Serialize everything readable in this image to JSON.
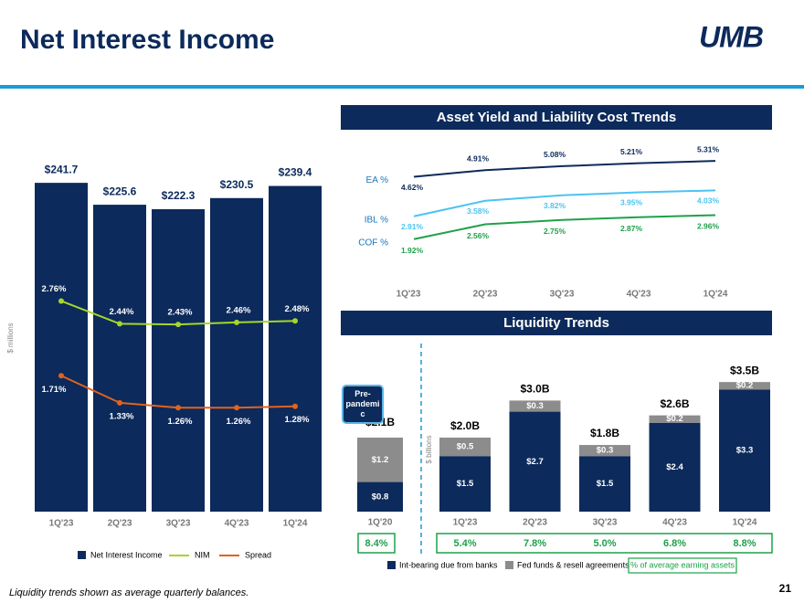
{
  "title": "Net Interest Income",
  "logo": "UMB",
  "footnote": "Liquidity trends shown as average quarterly balances.",
  "page_number": "21",
  "chart_data": [
    {
      "type": "combo",
      "y_label": "$ millions",
      "categories": [
        "1Q'23",
        "2Q'23",
        "3Q'23",
        "4Q'23",
        "1Q'24"
      ],
      "ylim": [
        0,
        272
      ],
      "y2lim": [
        -0.2,
        5.0
      ],
      "series": [
        {
          "name": "Net Interest Income",
          "type": "bar",
          "color": "#0c2a5b",
          "values": [
            241.7,
            225.6,
            222.3,
            230.5,
            239.4
          ],
          "value_labels": [
            "$241.7",
            "$225.6",
            "$222.3",
            "$230.5",
            "$239.4"
          ]
        },
        {
          "name": "NIM",
          "type": "line",
          "axis": "y2",
          "color": "#a6d62a",
          "values": [
            2.76,
            2.44,
            2.43,
            2.46,
            2.48
          ],
          "value_labels": [
            "2.76%",
            "2.44%",
            "2.43%",
            "2.46%",
            "2.48%"
          ]
        },
        {
          "name": "Spread",
          "type": "line",
          "axis": "y2",
          "color": "#e2621d",
          "values": [
            1.71,
            1.33,
            1.26,
            1.26,
            1.28
          ],
          "value_labels": [
            "1.71%",
            "1.33%",
            "1.26%",
            "1.26%",
            "1.28%"
          ]
        }
      ]
    },
    {
      "type": "line",
      "title": "Asset Yield and Liability Cost Trends",
      "categories": [
        "1Q'23",
        "2Q'23",
        "3Q'23",
        "4Q'23",
        "1Q'24"
      ],
      "ylim": [
        0.8,
        5.75
      ],
      "series": [
        {
          "name": "EA %",
          "color": "#0c2a5b",
          "values": [
            4.62,
            4.91,
            5.08,
            5.21,
            5.31
          ],
          "value_labels": [
            "4.62%",
            "4.91%",
            "5.08%",
            "5.21%",
            "5.31%"
          ]
        },
        {
          "name": "IBL %",
          "color": "#4cc3f0",
          "values": [
            2.91,
            3.58,
            3.82,
            3.95,
            4.03
          ],
          "value_labels": [
            "2.91%",
            "3.58%",
            "3.82%",
            "3.95%",
            "4.03%"
          ]
        },
        {
          "name": "COF %",
          "color": "#1fa04a",
          "values": [
            1.92,
            2.56,
            2.75,
            2.87,
            2.96
          ],
          "value_labels": [
            "1.92%",
            "2.56%",
            "2.75%",
            "2.87%",
            "2.96%"
          ]
        }
      ]
    },
    {
      "type": "stacked_bar",
      "title": "Liquidity Trends",
      "y_label": "$ billions",
      "annotation": "Pre-pandemic",
      "categories": [
        "1Q'20",
        "1Q'23",
        "2Q'23",
        "3Q'23",
        "4Q'23",
        "1Q'24"
      ],
      "ylim": [
        0,
        3.8
      ],
      "series": [
        {
          "name": "Int-bearing due from banks",
          "color": "#0c2a5b",
          "values": [
            0.8,
            1.5,
            2.7,
            1.5,
            2.4,
            3.3
          ],
          "value_labels": [
            "$0.8",
            "$1.5",
            "$2.7",
            "$1.5",
            "$2.4",
            "$3.3"
          ]
        },
        {
          "name": "Fed funds & resell agreements",
          "color": "#8c8c8c",
          "values": [
            1.2,
            0.5,
            0.3,
            0.3,
            0.2,
            0.2
          ],
          "value_labels": [
            "$1.2",
            "$0.5",
            "$0.3",
            "$0.3",
            "$0.2",
            "$0.2"
          ]
        }
      ],
      "totals": {
        "values": [
          2.1,
          2.0,
          3.0,
          1.8,
          2.6,
          3.5
        ],
        "value_labels": [
          "$2.1B",
          "$2.0B",
          "$3.0B",
          "$1.8B",
          "$2.6B",
          "$3.5B"
        ]
      },
      "share": {
        "name": "% of average earning assets",
        "color": "#1fa04a",
        "values": [
          8.4,
          5.4,
          7.8,
          5.0,
          6.8,
          8.8
        ],
        "value_labels": [
          "8.4%",
          "5.4%",
          "7.8%",
          "5.0%",
          "6.8%",
          "8.8%"
        ]
      }
    }
  ]
}
